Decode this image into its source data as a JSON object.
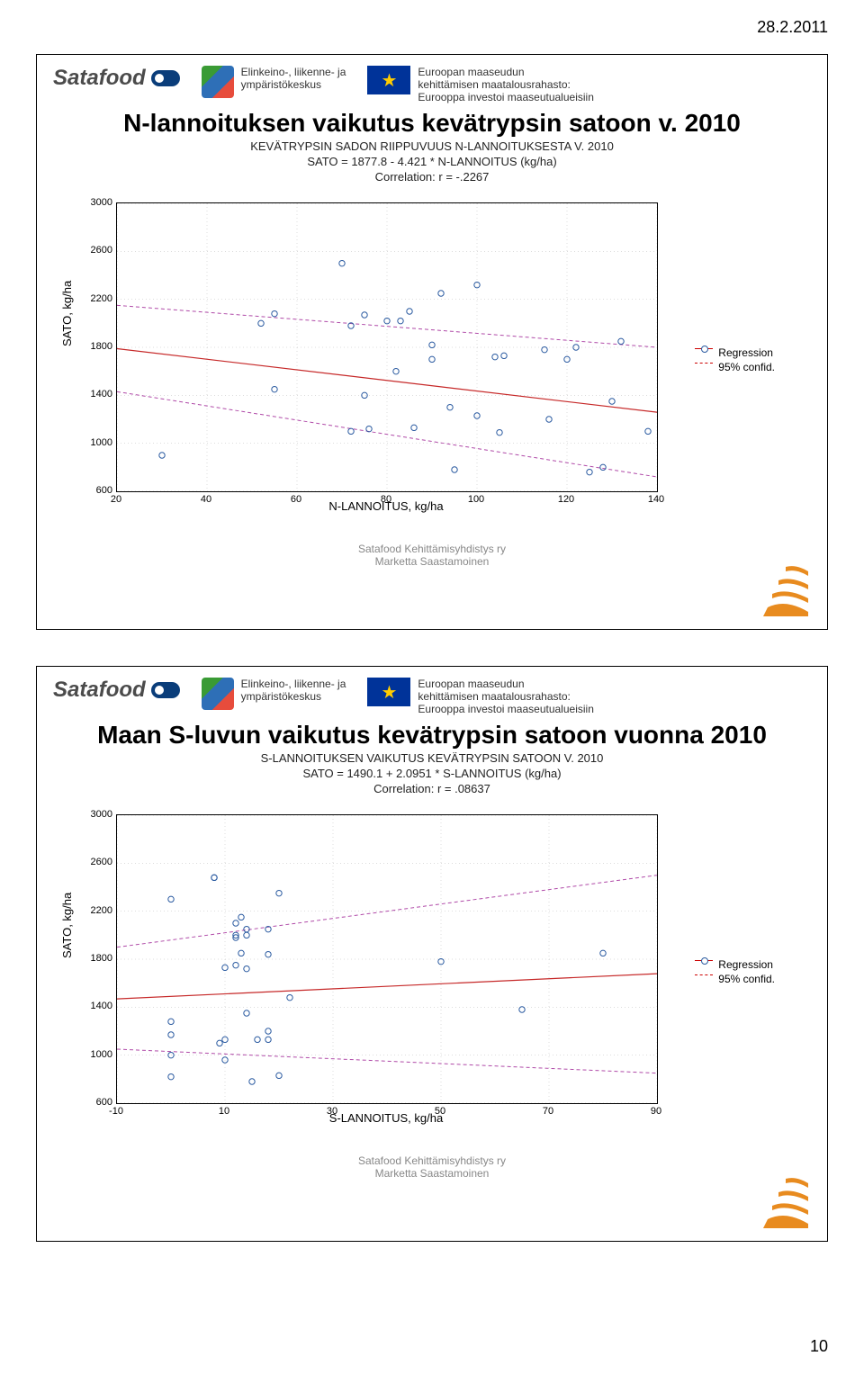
{
  "page_date": "28.2.2011",
  "page_number": "10",
  "header": {
    "satafood": "Satafood",
    "ely_line1": "Elinkeino-, liikenne- ja",
    "ely_line2": "ympäristökeskus",
    "eu_line1": "Euroopan maaseudun",
    "eu_line2": "kehittämisen maatalousrahasto:",
    "eu_line3": "Eurooppa investoi maaseutualueisiin",
    "eu_star": "★"
  },
  "footer": {
    "line1": "Satafood Kehittämisyhdistys ry",
    "line2": "Marketta Saastamoinen"
  },
  "legend": {
    "l1": "Regression",
    "l2": "95% confid."
  },
  "corner_color": "#e88b1f",
  "slide1": {
    "title": "N-lannoituksen vaikutus kevätrypsin satoon v. 2010",
    "chart": {
      "type": "scatter",
      "title1": "KEVÄTRYPSIN SADON RIIPPUVUUS N-LANNOITUKSESTA V. 2010",
      "title2": "SATO = 1877.8 - 4.421 * N-LANNOITUS (kg/ha)",
      "title3": "Correlation: r = -.2267",
      "xlabel": "N-LANNOITUS, kg/ha",
      "ylabel": "SATO, kg/ha",
      "xlim": [
        20,
        140
      ],
      "ylim": [
        600,
        3000
      ],
      "xticks": [
        20,
        40,
        60,
        80,
        100,
        120,
        140
      ],
      "yticks": [
        600,
        1000,
        1400,
        1800,
        2200,
        2600,
        3000
      ],
      "reg_color": "#c62828",
      "conf_color": "#b04aa8",
      "point_color": "#2a5aa0",
      "point_r": 3.2,
      "reg_y_at_xmin": 1789,
      "reg_y_at_xmax": 1259,
      "conf_upper": {
        "y_xmin": 2150,
        "y_xmax": 1800
      },
      "conf_lower": {
        "y_xmin": 1430,
        "y_xmax": 720
      },
      "points": [
        [
          30,
          900
        ],
        [
          52,
          2000
        ],
        [
          55,
          2080
        ],
        [
          55,
          1450
        ],
        [
          70,
          2500
        ],
        [
          72,
          1100
        ],
        [
          72,
          1980
        ],
        [
          75,
          2070
        ],
        [
          75,
          1400
        ],
        [
          76,
          1120
        ],
        [
          80,
          2020
        ],
        [
          82,
          1600
        ],
        [
          83,
          2020
        ],
        [
          85,
          2100
        ],
        [
          86,
          1130
        ],
        [
          90,
          1820
        ],
        [
          90,
          1700
        ],
        [
          92,
          2250
        ],
        [
          94,
          1300
        ],
        [
          95,
          780
        ],
        [
          100,
          2320
        ],
        [
          100,
          1230
        ],
        [
          104,
          1720
        ],
        [
          105,
          1090
        ],
        [
          106,
          1730
        ],
        [
          115,
          1780
        ],
        [
          116,
          1200
        ],
        [
          120,
          1700
        ],
        [
          122,
          1800
        ],
        [
          125,
          760
        ],
        [
          128,
          800
        ],
        [
          130,
          1350
        ],
        [
          132,
          1850
        ],
        [
          138,
          1100
        ]
      ]
    }
  },
  "slide2": {
    "title": "Maan S-luvun vaikutus kevätrypsin satoon vuonna 2010",
    "chart": {
      "type": "scatter",
      "title1": "S-LANNOITUKSEN VAIKUTUS KEVÄTRYPSIN SATOON V. 2010",
      "title2": "SATO = 1490.1 + 2.0951 * S-LANNOITUS (kg/ha)",
      "title3": "Correlation: r = .08637",
      "xlabel": "S-LANNOITUS, kg/ha",
      "ylabel": "SATO, kg/ha",
      "xlim": [
        -10,
        90
      ],
      "ylim": [
        600,
        3000
      ],
      "xticks": [
        -10,
        10,
        30,
        50,
        70,
        90
      ],
      "yticks": [
        600,
        1000,
        1400,
        1800,
        2200,
        2600,
        3000
      ],
      "reg_color": "#c62828",
      "conf_color": "#b04aa8",
      "point_color": "#2a5aa0",
      "point_r": 3.2,
      "reg_y_at_xmin": 1469,
      "reg_y_at_xmax": 1679,
      "conf_upper": {
        "y_xmin": 1900,
        "y_xmax": 2500
      },
      "conf_lower": {
        "y_xmin": 1050,
        "y_xmax": 850
      },
      "points": [
        [
          0,
          2300
        ],
        [
          0,
          1280
        ],
        [
          0,
          1170
        ],
        [
          0,
          1000
        ],
        [
          0,
          820
        ],
        [
          8,
          2480
        ],
        [
          8,
          2480
        ],
        [
          9,
          1100
        ],
        [
          10,
          1730
        ],
        [
          10,
          1130
        ],
        [
          10,
          960
        ],
        [
          12,
          2100
        ],
        [
          12,
          2000
        ],
        [
          12,
          1980
        ],
        [
          12,
          1750
        ],
        [
          13,
          2150
        ],
        [
          13,
          1850
        ],
        [
          14,
          2050
        ],
        [
          14,
          2000
        ],
        [
          14,
          1720
        ],
        [
          14,
          1350
        ],
        [
          15,
          780
        ],
        [
          16,
          1130
        ],
        [
          18,
          2050
        ],
        [
          18,
          1840
        ],
        [
          18,
          1200
        ],
        [
          18,
          1130
        ],
        [
          20,
          2350
        ],
        [
          20,
          830
        ],
        [
          22,
          1480
        ],
        [
          50,
          1780
        ],
        [
          65,
          1380
        ],
        [
          80,
          1850
        ]
      ]
    }
  }
}
